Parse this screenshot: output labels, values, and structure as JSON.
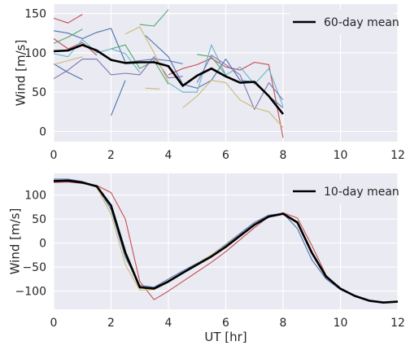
{
  "chart_data": [
    {
      "type": "line",
      "xlabel": "",
      "ylabel": "Wind [m/s]",
      "xlim": [
        0,
        12
      ],
      "ylim": [
        -13,
        162
      ],
      "xticks": [
        0,
        2,
        4,
        6,
        8,
        10,
        12
      ],
      "yticks": [
        0,
        50,
        100,
        150
      ],
      "grid": true,
      "legend": {
        "placement": "top-right",
        "entries": [
          "60-day mean"
        ]
      },
      "mean": {
        "name": "60-day mean",
        "color": "#000000",
        "x": [
          0,
          0.5,
          1,
          1.5,
          2,
          2.5,
          3,
          3.5,
          4,
          4.5,
          5,
          5.5,
          6,
          6.5,
          7,
          7.5,
          8
        ],
        "y": [
          102,
          103,
          110,
          103,
          91,
          87,
          88,
          88,
          83,
          58,
          71,
          80,
          70,
          62,
          63,
          45,
          22
        ]
      },
      "series": [
        {
          "color": "#c44e52",
          "x": [
            0,
            0.5,
            1
          ],
          "y": [
            144,
            138,
            149
          ]
        },
        {
          "color": "#c44e52",
          "x": [
            0,
            0.5,
            1,
            1.5
          ],
          "y": [
            118,
            105,
            113,
            97
          ]
        },
        {
          "color": "#c44e52",
          "x": [
            4,
            4.5,
            5,
            5.5,
            6,
            6.5,
            7,
            7.5,
            8
          ],
          "y": [
            72,
            80,
            85,
            93,
            82,
            78,
            88,
            85,
            -8
          ]
        },
        {
          "color": "#4c72b0",
          "x": [
            0,
            0.5,
            1,
            1.5,
            2,
            2.5,
            3,
            3.5,
            4,
            4.5
          ],
          "y": [
            128,
            125,
            118,
            126,
            131,
            88,
            90,
            92,
            90,
            86
          ]
        },
        {
          "color": "#4c72b0",
          "x": [
            0,
            0.5,
            1
          ],
          "y": [
            86,
            75,
            66
          ]
        },
        {
          "color": "#4c72b0",
          "x": [
            2,
            2.5
          ],
          "y": [
            20,
            65
          ]
        },
        {
          "color": "#4c72b0",
          "x": [
            3.2,
            4,
            4.5,
            5,
            5.5,
            6,
            6.5,
            7,
            7.5,
            8
          ],
          "y": [
            122,
            95,
            60,
            55,
            65,
            92,
            65,
            63,
            45,
            30
          ]
        },
        {
          "color": "#55a868",
          "x": [
            0,
            0.5,
            1
          ],
          "y": [
            112,
            120,
            130
          ]
        },
        {
          "color": "#55a868",
          "x": [
            2,
            2.5,
            3,
            3.5,
            4
          ],
          "y": [
            105,
            110,
            80,
            90,
            60
          ]
        },
        {
          "color": "#55a868",
          "x": [
            3,
            3.5,
            4
          ],
          "y": [
            136,
            134,
            155
          ]
        },
        {
          "color": "#55a868",
          "x": [
            5,
            5.5,
            6
          ],
          "y": [
            98,
            95,
            72
          ]
        },
        {
          "color": "#64b5cd",
          "x": [
            0,
            0.5,
            1,
            1.5,
            2,
            2.5,
            3
          ],
          "y": [
            99,
            95,
            117,
            100,
            105,
            99,
            75
          ]
        },
        {
          "color": "#64b5cd",
          "x": [
            4,
            4.5,
            5,
            5.5,
            6,
            6.5,
            7,
            7.5,
            8
          ],
          "y": [
            62,
            50,
            50,
            110,
            72,
            82,
            60,
            80,
            32
          ]
        },
        {
          "color": "#8172b2",
          "x": [
            0,
            0.5,
            1,
            1.5,
            2,
            2.5,
            3,
            3.5,
            4,
            4.5
          ],
          "y": [
            67,
            78,
            92,
            92,
            72,
            74,
            72,
            95,
            68,
            70
          ]
        },
        {
          "color": "#8172b2",
          "x": [
            5,
            5.5,
            6,
            6.5,
            7,
            7.5,
            8
          ],
          "y": [
            62,
            97,
            85,
            72,
            28,
            62,
            40
          ]
        },
        {
          "color": "#ccb974",
          "x": [
            0,
            0.5,
            1
          ],
          "y": [
            85,
            90,
            95
          ]
        },
        {
          "color": "#ccb974",
          "x": [
            2.5,
            3,
            3.5,
            4
          ],
          "y": [
            124,
            133,
            100,
            63
          ]
        },
        {
          "color": "#ccb974",
          "x": [
            3.2,
            3.7
          ],
          "y": [
            55,
            54
          ]
        },
        {
          "color": "#ccb974",
          "x": [
            4.5,
            5,
            5.5,
            6,
            6.5,
            7,
            7.5,
            8
          ],
          "y": [
            30,
            45,
            65,
            62,
            40,
            30,
            25,
            5
          ]
        }
      ]
    },
    {
      "type": "line",
      "xlabel": "UT [hr]",
      "ylabel": "Wind [m/s]",
      "xlim": [
        0,
        12
      ],
      "ylim": [
        -138,
        145
      ],
      "xticks": [
        0,
        2,
        4,
        6,
        8,
        10,
        12
      ],
      "yticks": [
        100,
        50,
        0,
        -50,
        -100
      ],
      "grid": true,
      "legend": {
        "placement": "top-right",
        "entries": [
          "10-day mean"
        ]
      },
      "mean": {
        "name": "10-day mean",
        "color": "#000000",
        "x": [
          0,
          0.5,
          1,
          1.5,
          2,
          2.5,
          3,
          3.5,
          4,
          4.5,
          5,
          5.5,
          6,
          6.5,
          7,
          7.5,
          8,
          8.5,
          9,
          9.5,
          10,
          10.5,
          11,
          11.5,
          12
        ],
        "y": [
          129,
          130,
          126,
          118,
          78,
          -20,
          -92,
          -95,
          -80,
          -62,
          -45,
          -28,
          -8,
          15,
          38,
          55,
          61,
          43,
          -20,
          -70,
          -95,
          -110,
          -120,
          -124,
          -122
        ]
      },
      "series": [
        {
          "color": "#4c72b0",
          "x": [
            0,
            0.5,
            1,
            1.5,
            2,
            2.5,
            3,
            3.5,
            4,
            4.5,
            5,
            5.5,
            6,
            6.5,
            7,
            7.5,
            8,
            8.5,
            9,
            9.5,
            10,
            10.5,
            11,
            11.5,
            12
          ],
          "y": [
            133,
            133,
            128,
            118,
            70,
            -30,
            -88,
            -92,
            -75,
            -58,
            -42,
            -25,
            -3,
            20,
            43,
            58,
            62,
            30,
            -35,
            -75,
            -97,
            -111,
            -120,
            -124,
            -122
          ]
        },
        {
          "color": "#c44e52",
          "x": [
            0,
            0.5,
            1,
            1.5,
            2,
            2.5,
            3,
            3.5,
            4,
            4.5,
            5,
            5.5,
            6,
            6.5,
            7,
            7.5,
            8,
            8.5,
            9,
            9.5,
            10,
            10.5,
            11,
            11.5,
            12
          ],
          "y": [
            126,
            127,
            124,
            120,
            105,
            50,
            -80,
            -118,
            -100,
            -80,
            -60,
            -40,
            -18,
            7,
            32,
            55,
            63,
            52,
            -5,
            -67,
            -95,
            -110,
            -120,
            -124,
            -122
          ]
        },
        {
          "color": "#ccb974",
          "x": [
            0,
            0.5,
            1,
            1.5,
            2,
            2.5,
            3,
            3.5,
            4,
            4.5,
            5,
            5.5,
            6,
            6.5,
            7,
            7.5,
            8,
            8.5,
            9,
            9.5,
            10,
            10.5,
            11,
            11.5,
            12
          ],
          "y": [
            128,
            129,
            126,
            116,
            60,
            -45,
            -98,
            -97,
            -82,
            -63,
            -43,
            -25,
            -5,
            17,
            40,
            56,
            62,
            40,
            -22,
            -70,
            -95,
            -110,
            -120,
            -124,
            -122
          ]
        },
        {
          "color": "#55a868",
          "x": [
            0,
            0.5,
            1,
            1.5,
            2,
            2.5,
            3,
            3.5,
            4,
            4.5,
            5,
            5.5,
            6,
            6.5,
            7,
            7.5,
            8,
            8.5,
            9,
            9.5,
            10,
            10.5,
            11,
            11.5,
            12
          ],
          "y": [
            130,
            131,
            126,
            117,
            75,
            -25,
            -94,
            -94,
            -80,
            -62,
            -45,
            -28,
            -8,
            16,
            39,
            56,
            61,
            44,
            -20,
            -70,
            -95,
            -110,
            -120,
            -124,
            -122
          ]
        }
      ]
    }
  ]
}
